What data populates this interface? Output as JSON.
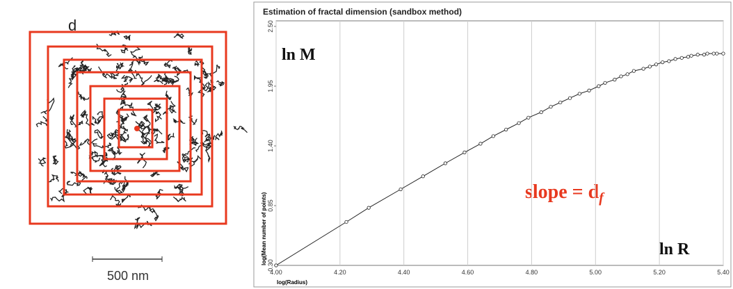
{
  "left_image": {
    "label": "d",
    "scale_bar": "500 nm"
  },
  "chart_data": {
    "type": "line",
    "title": "Estimation of fractal dimension (sandbox method)",
    "x_label": "log(Radius)",
    "y_label": "log(Mean number of points)",
    "annotations": [
      {
        "text": "ln M"
      },
      {
        "text": "slope = d",
        "subscript": "f"
      },
      {
        "text": "ln R"
      }
    ],
    "x": [
      4.0,
      4.22,
      4.29,
      4.39,
      4.46,
      4.53,
      4.59,
      4.64,
      4.68,
      4.72,
      4.76,
      4.79,
      4.83,
      4.86,
      4.89,
      4.92,
      4.95,
      4.98,
      5.01,
      5.03,
      5.06,
      5.08,
      5.1,
      5.12,
      5.15,
      5.17,
      5.19,
      5.21,
      5.23,
      5.25,
      5.27,
      5.29,
      5.3,
      5.32,
      5.34,
      5.35,
      5.37,
      5.38,
      5.4
    ],
    "series": [
      {
        "color": "#222222",
        "values": [
          0.3,
          0.7,
          0.83,
          1.0,
          1.12,
          1.24,
          1.34,
          1.42,
          1.49,
          1.55,
          1.61,
          1.66,
          1.71,
          1.76,
          1.8,
          1.84,
          1.88,
          1.91,
          1.95,
          1.98,
          2.01,
          2.04,
          2.06,
          2.09,
          2.11,
          2.13,
          2.15,
          2.17,
          2.18,
          2.2,
          2.21,
          2.22,
          2.23,
          2.24,
          2.24,
          2.25,
          2.25,
          2.25,
          2.25
        ]
      }
    ],
    "xlim": [
      4.0,
      5.4
    ],
    "xticks": [
      {
        "value": 4.0,
        "label": "4.00"
      },
      {
        "value": 4.2,
        "label": "4.20"
      },
      {
        "value": 4.4,
        "label": "4.40"
      },
      {
        "value": 4.6,
        "label": "4.60"
      },
      {
        "value": 4.8,
        "label": "4.80"
      },
      {
        "value": 5.0,
        "label": "5.00"
      },
      {
        "value": 5.2,
        "label": "5.20"
      },
      {
        "value": 5.4,
        "label": "5.40"
      }
    ],
    "ylim": [
      0.3,
      2.5
    ],
    "yticks": [
      {
        "value": 0.3,
        "label": "0.30"
      },
      {
        "value": 0.85,
        "label": "0.85"
      },
      {
        "value": 1.4,
        "label": "1.40"
      },
      {
        "value": 1.95,
        "label": "1.95"
      },
      {
        "value": 2.5,
        "label": "2.50"
      }
    ],
    "grid": true
  }
}
